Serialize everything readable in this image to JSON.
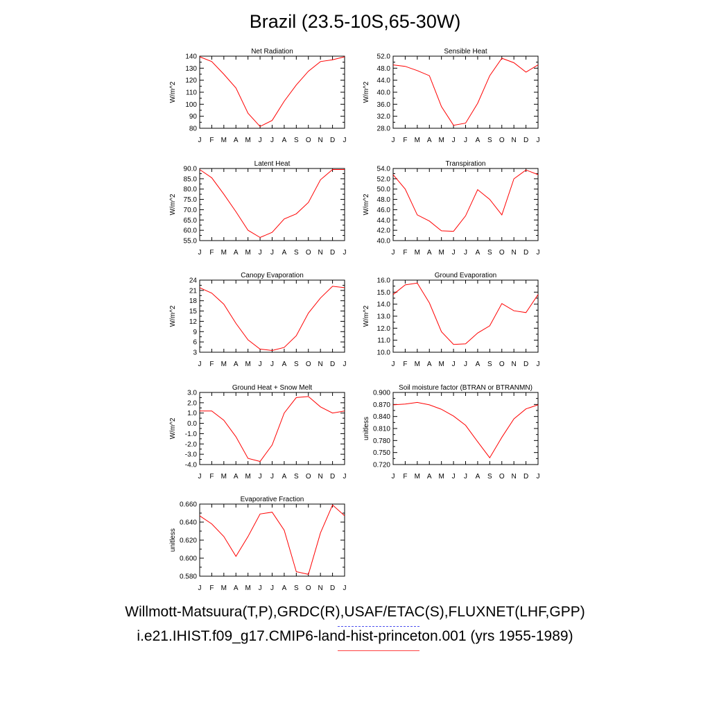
{
  "page": {
    "title": "Brazil (23.5-10S,65-30W)",
    "footer_obs": "Willmott-Matsuura(T,P),GRDC(R),USAF/ETAC(S),FLUXNET(LHF,GPP)",
    "footer_case": "i.e21.IHIST.f09_g17.CMIP6-land-hist-princeton.001 (yrs 1955-1989)",
    "line_color": "#ff0000",
    "obs_line_color": "#4b50ee"
  },
  "chart_data": [
    {
      "type": "line",
      "title": "Net Radiation",
      "xlabel": "",
      "ylabel": "W/m^2",
      "x": [
        "J",
        "F",
        "M",
        "A",
        "M",
        "J",
        "J",
        "A",
        "S",
        "O",
        "N",
        "D",
        "J"
      ],
      "ylim": [
        80,
        140
      ],
      "yticks": [
        "80",
        "90",
        "100",
        "110",
        "120",
        "130",
        "140"
      ],
      "series": [
        {
          "values": [
            139.5,
            135.5,
            125,
            113.5,
            92.5,
            81.5,
            86.5,
            102.5,
            116,
            127.5,
            135.5,
            137,
            139.5
          ]
        }
      ]
    },
    {
      "type": "line",
      "title": "Sensible Heat",
      "xlabel": "",
      "ylabel": "W/m^2",
      "x": [
        "J",
        "F",
        "M",
        "A",
        "M",
        "J",
        "J",
        "A",
        "S",
        "O",
        "N",
        "D",
        "J"
      ],
      "ylim": [
        28,
        52
      ],
      "yticks": [
        "28.0",
        "32.0",
        "36.0",
        "40.0",
        "44.0",
        "48.0",
        "52.0"
      ],
      "series": [
        {
          "values": [
            49.1,
            48.6,
            47.2,
            45.5,
            35.2,
            29.0,
            29.7,
            36.3,
            45.5,
            51.3,
            49.8,
            46.7,
            49.1
          ]
        }
      ]
    },
    {
      "type": "line",
      "title": "Latent Heat",
      "xlabel": "",
      "ylabel": "W/m^2",
      "x": [
        "J",
        "F",
        "M",
        "A",
        "M",
        "J",
        "J",
        "A",
        "S",
        "O",
        "N",
        "D",
        "J"
      ],
      "ylim": [
        55,
        90
      ],
      "yticks": [
        "55.0",
        "60.0",
        "65.0",
        "70.0",
        "75.0",
        "80.0",
        "85.0",
        "90.0"
      ],
      "series": [
        {
          "values": [
            89.5,
            85.5,
            77.5,
            69,
            60,
            56.5,
            59,
            65.5,
            68,
            73.5,
            84.5,
            89.5,
            89.5
          ]
        }
      ]
    },
    {
      "type": "line",
      "title": "Transpiration",
      "xlabel": "",
      "ylabel": "W/m^2",
      "x": [
        "J",
        "F",
        "M",
        "A",
        "M",
        "J",
        "J",
        "A",
        "S",
        "O",
        "N",
        "D",
        "J"
      ],
      "ylim": [
        40,
        54
      ],
      "yticks": [
        "40.0",
        "42.0",
        "44.0",
        "46.0",
        "48.0",
        "50.0",
        "52.0",
        "54.0"
      ],
      "series": [
        {
          "values": [
            52.8,
            50,
            45,
            43.8,
            41.9,
            41.8,
            44.8,
            49.9,
            48,
            45,
            52,
            53.7,
            52.8
          ]
        }
      ]
    },
    {
      "type": "line",
      "title": "Canopy Evaporation",
      "xlabel": "",
      "ylabel": "W/m^2",
      "x": [
        "J",
        "F",
        "M",
        "A",
        "M",
        "J",
        "J",
        "A",
        "S",
        "O",
        "N",
        "D",
        "J"
      ],
      "ylim": [
        3,
        24
      ],
      "yticks": [
        "3",
        "6",
        "9",
        "12",
        "15",
        "18",
        "21",
        "24"
      ],
      "series": [
        {
          "values": [
            21.8,
            20.2,
            17,
            11.4,
            6.6,
            3.9,
            3.5,
            4.4,
            7.8,
            14.4,
            18.8,
            22.2,
            21.8
          ]
        }
      ]
    },
    {
      "type": "line",
      "title": "Ground Evaporation",
      "xlabel": "",
      "ylabel": "W/m^2",
      "x": [
        "J",
        "F",
        "M",
        "A",
        "M",
        "J",
        "J",
        "A",
        "S",
        "O",
        "N",
        "D",
        "J"
      ],
      "ylim": [
        10,
        16
      ],
      "yticks": [
        "10.0",
        "11.0",
        "12.0",
        "13.0",
        "14.0",
        "15.0",
        "16.0"
      ],
      "series": [
        {
          "values": [
            14.8,
            15.6,
            15.75,
            14.1,
            11.7,
            10.65,
            10.7,
            11.6,
            12.2,
            14.05,
            13.45,
            13.3,
            14.8
          ]
        }
      ]
    },
    {
      "type": "line",
      "title": "Ground Heat + Snow Melt",
      "xlabel": "",
      "ylabel": "W/m^2",
      "x": [
        "J",
        "F",
        "M",
        "A",
        "M",
        "J",
        "J",
        "A",
        "S",
        "O",
        "N",
        "D",
        "J"
      ],
      "ylim": [
        -4,
        3
      ],
      "yticks": [
        "-4.0",
        "-3.0",
        "-2.0",
        "-1.0",
        "0.0",
        "1.0",
        "2.0",
        "3.0"
      ],
      "series": [
        {
          "values": [
            1.2,
            1.2,
            0.3,
            -1.3,
            -3.4,
            -3.7,
            -2.1,
            1.0,
            2.5,
            2.6,
            1.6,
            1.0,
            1.2
          ]
        }
      ]
    },
    {
      "type": "line",
      "title": "Soil moisture factor (BTRAN or BTRANMN)",
      "xlabel": "",
      "ylabel": "unitless",
      "x": [
        "J",
        "F",
        "M",
        "A",
        "M",
        "J",
        "J",
        "A",
        "S",
        "O",
        "N",
        "D",
        "J"
      ],
      "ylim": [
        0.72,
        0.9
      ],
      "yticks": [
        "0.720",
        "0.750",
        "0.780",
        "0.810",
        "0.840",
        "0.870",
        "0.900"
      ],
      "series": [
        {
          "values": [
            0.869,
            0.871,
            0.875,
            0.869,
            0.858,
            0.841,
            0.818,
            0.777,
            0.737,
            0.788,
            0.834,
            0.859,
            0.869
          ]
        }
      ]
    },
    {
      "type": "line",
      "title": "Evaporative Fraction",
      "xlabel": "",
      "ylabel": "unitless",
      "x": [
        "J",
        "F",
        "M",
        "A",
        "M",
        "J",
        "J",
        "A",
        "S",
        "O",
        "N",
        "D",
        "J"
      ],
      "ylim": [
        0.58,
        0.66
      ],
      "yticks": [
        "0.580",
        "0.600",
        "0.620",
        "0.640",
        "0.660"
      ],
      "series": [
        {
          "values": [
            0.647,
            0.638,
            0.624,
            0.602,
            0.624,
            0.649,
            0.651,
            0.631,
            0.585,
            0.582,
            0.628,
            0.659,
            0.647
          ]
        }
      ]
    }
  ]
}
